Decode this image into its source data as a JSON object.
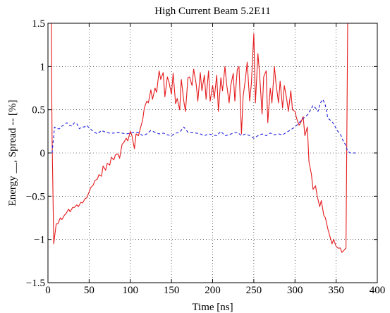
{
  "chart_data": {
    "type": "line",
    "title": "High Current Beam 5.2E11",
    "xlabel": "Time [ns]",
    "ylabel": "Energy __, Spread -- [%]",
    "xlim": [
      0,
      400
    ],
    "ylim": [
      -1.5,
      1.5
    ],
    "xticks": [
      0,
      50,
      100,
      150,
      200,
      250,
      300,
      350,
      400
    ],
    "yticks": [
      -1.5,
      -1,
      -0.5,
      0,
      0.5,
      1,
      1.5
    ],
    "xtick_labels": [
      "0",
      "50",
      "100",
      "150",
      "200",
      "250",
      "300",
      "350",
      "400"
    ],
    "ytick_labels": [
      "−1.5",
      "−1",
      "−0.5",
      "0",
      "0.5",
      "1",
      "1.5"
    ],
    "grid": true,
    "series": [
      {
        "color": "#e41a1c",
        "line_style": "solid",
        "x": [
          4,
          5,
          7,
          10,
          12,
          15,
          17,
          20,
          22,
          25,
          27,
          30,
          32,
          35,
          37,
          40,
          42,
          45,
          47,
          50,
          52,
          55,
          57,
          60,
          62,
          65,
          67,
          70,
          72,
          75,
          77,
          80,
          82,
          85,
          87,
          90,
          92,
          95,
          97,
          100,
          102,
          105,
          107,
          110,
          112,
          115,
          117,
          120,
          122,
          125,
          127,
          130,
          132,
          135,
          137,
          140,
          142,
          145,
          147,
          150,
          152,
          155,
          157,
          160,
          162,
          165,
          167,
          170,
          172,
          175,
          177,
          180,
          182,
          185,
          187,
          190,
          192,
          195,
          197,
          200,
          202,
          205,
          207,
          210,
          212,
          215,
          217,
          220,
          222,
          225,
          227,
          230,
          232,
          235,
          237,
          240,
          242,
          245,
          247,
          250,
          252,
          255,
          257,
          260,
          262,
          265,
          267,
          270,
          272,
          275,
          277,
          280,
          282,
          285,
          287,
          290,
          292,
          295,
          297,
          300,
          302,
          305,
          307,
          310,
          312,
          315,
          317,
          320,
          322,
          325,
          327,
          330,
          332,
          335,
          337,
          340,
          342,
          345,
          347,
          350,
          352,
          355,
          357,
          360,
          362,
          364
        ],
        "values": [
          1.5,
          0.2,
          -1.05,
          -0.82,
          -0.82,
          -0.75,
          -0.77,
          -0.72,
          -0.7,
          -0.65,
          -0.68,
          -0.63,
          -0.63,
          -0.6,
          -0.62,
          -0.57,
          -0.58,
          -0.53,
          -0.52,
          -0.45,
          -0.4,
          -0.37,
          -0.32,
          -0.3,
          -0.25,
          -0.27,
          -0.15,
          -0.2,
          -0.12,
          -0.14,
          -0.05,
          -0.08,
          -0.02,
          -0.01,
          -0.06,
          0.1,
          0.12,
          0.17,
          0.14,
          0.25,
          0.2,
          0.05,
          0.22,
          0.2,
          0.28,
          0.38,
          0.52,
          0.6,
          0.58,
          0.73,
          0.62,
          0.75,
          0.7,
          0.95,
          0.85,
          0.93,
          0.65,
          0.88,
          0.82,
          0.68,
          0.92,
          0.57,
          0.63,
          0.5,
          0.85,
          0.6,
          0.48,
          0.87,
          0.88,
          0.78,
          0.97,
          0.8,
          0.6,
          0.93,
          0.72,
          0.9,
          0.62,
          0.95,
          0.6,
          0.78,
          0.63,
          0.9,
          0.48,
          0.87,
          0.72,
          1.0,
          0.8,
          0.58,
          0.78,
          0.92,
          0.6,
          0.97,
          1.0,
          0.22,
          0.65,
          0.87,
          1.05,
          0.6,
          0.8,
          1.38,
          0.58,
          1.15,
          0.92,
          0.45,
          0.88,
          0.95,
          0.35,
          0.75,
          0.58,
          1.0,
          0.8,
          0.58,
          0.83,
          0.52,
          0.78,
          0.62,
          0.48,
          0.72,
          0.5,
          0.48,
          0.4,
          0.32,
          0.35,
          0.42,
          0.2,
          0.3,
          -0.1,
          -0.25,
          -0.42,
          -0.38,
          -0.5,
          -0.62,
          -0.55,
          -0.72,
          -0.75,
          -0.88,
          -0.95,
          -1.05,
          -1.0,
          -1.08,
          -1.1,
          -1.1,
          -1.15,
          -1.12,
          -1.1,
          1.5
        ]
      },
      {
        "color": "#1f1fe0",
        "line_style": "dashed",
        "x": [
          5,
          8,
          11,
          14,
          17,
          20,
          23,
          26,
          29,
          32,
          35,
          38,
          41,
          44,
          47,
          50,
          55,
          60,
          65,
          70,
          75,
          80,
          85,
          90,
          95,
          100,
          105,
          110,
          115,
          120,
          125,
          130,
          135,
          140,
          145,
          150,
          155,
          160,
          165,
          170,
          175,
          180,
          185,
          190,
          195,
          200,
          205,
          210,
          215,
          220,
          225,
          230,
          235,
          240,
          245,
          250,
          255,
          260,
          265,
          270,
          275,
          280,
          285,
          290,
          295,
          300,
          305,
          310,
          313,
          316,
          319,
          322,
          325,
          328,
          331,
          334,
          337,
          340,
          343,
          346,
          349,
          352,
          355,
          358,
          361,
          364,
          367,
          370,
          374
        ],
        "values": [
          0.0,
          0.3,
          0.28,
          0.28,
          0.31,
          0.33,
          0.35,
          0.32,
          0.31,
          0.35,
          0.34,
          0.28,
          0.3,
          0.3,
          0.32,
          0.29,
          0.25,
          0.22,
          0.26,
          0.24,
          0.23,
          0.23,
          0.24,
          0.23,
          0.22,
          0.23,
          0.24,
          0.24,
          0.2,
          0.22,
          0.26,
          0.24,
          0.22,
          0.23,
          0.21,
          0.2,
          0.23,
          0.24,
          0.3,
          0.24,
          0.24,
          0.23,
          0.22,
          0.2,
          0.22,
          0.21,
          0.2,
          0.25,
          0.2,
          0.21,
          0.23,
          0.24,
          0.2,
          0.22,
          0.2,
          0.17,
          0.2,
          0.22,
          0.2,
          0.23,
          0.21,
          0.22,
          0.21,
          0.24,
          0.27,
          0.3,
          0.35,
          0.4,
          0.42,
          0.45,
          0.5,
          0.55,
          0.52,
          0.48,
          0.58,
          0.62,
          0.55,
          0.4,
          0.38,
          0.35,
          0.3,
          0.25,
          0.22,
          0.15,
          0.1,
          0.02,
          0.0,
          0.0,
          0.0
        ]
      }
    ]
  }
}
